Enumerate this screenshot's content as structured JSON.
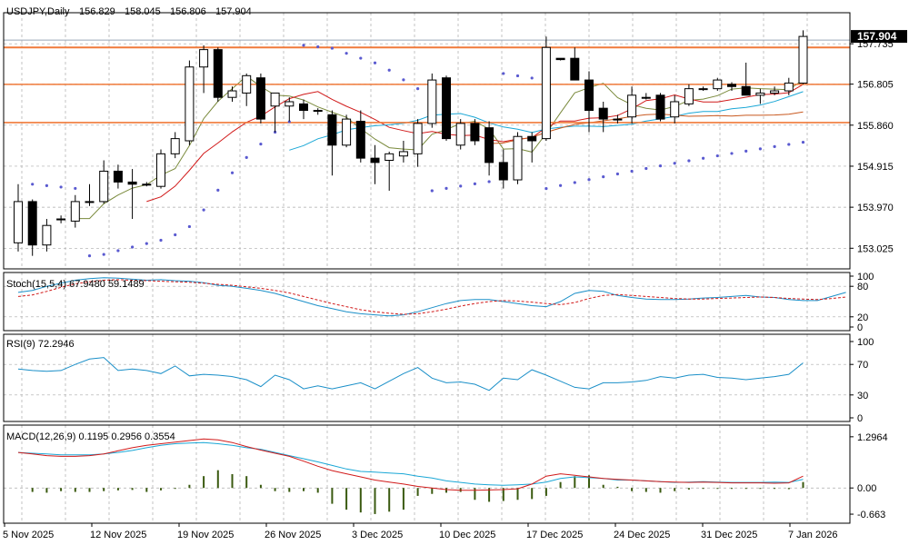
{
  "chart_data": {
    "type": "candlestick",
    "title": "USDJPY,Daily",
    "ohlc_header": [
      "156.829",
      "158.045",
      "156.806",
      "157.904"
    ],
    "current_price_label": "157.904",
    "price_axis": {
      "range": [
        152.55,
        158.45
      ],
      "ticks": [
        "157.735",
        "156.805",
        "155.860",
        "154.915",
        "153.970",
        "153.025"
      ]
    },
    "date_labels": [
      "5 Nov 2025",
      "12 Nov 2025",
      "19 Nov 2025",
      "26 Nov 2025",
      "3 Dec 2025",
      "10 Dec 2025",
      "17 Dec 2025",
      "24 Dec 2025",
      "31 Dec 2025",
      "7 Jan 2026"
    ],
    "horizontal_levels": [
      157.65,
      156.8,
      155.92
    ],
    "candles": [
      {
        "o": 153.15,
        "h": 154.5,
        "l": 152.95,
        "c": 154.1
      },
      {
        "o": 154.1,
        "h": 154.15,
        "l": 152.85,
        "c": 153.1
      },
      {
        "o": 153.1,
        "h": 153.7,
        "l": 152.95,
        "c": 153.55
      },
      {
        "o": 153.7,
        "h": 153.78,
        "l": 153.6,
        "c": 153.7
      },
      {
        "o": 153.65,
        "h": 154.25,
        "l": 153.5,
        "c": 154.1
      },
      {
        "o": 154.1,
        "h": 154.5,
        "l": 154.0,
        "c": 154.1
      },
      {
        "o": 154.1,
        "h": 155.05,
        "l": 154.05,
        "c": 154.8
      },
      {
        "o": 154.8,
        "h": 154.95,
        "l": 154.4,
        "c": 154.55
      },
      {
        "o": 154.55,
        "h": 154.85,
        "l": 153.7,
        "c": 154.5
      },
      {
        "o": 154.5,
        "h": 154.55,
        "l": 154.45,
        "c": 154.5
      },
      {
        "o": 154.45,
        "h": 155.3,
        "l": 154.4,
        "c": 155.2
      },
      {
        "o": 155.2,
        "h": 155.7,
        "l": 155.1,
        "c": 155.55
      },
      {
        "o": 155.5,
        "h": 157.35,
        "l": 155.4,
        "c": 157.2
      },
      {
        "o": 157.2,
        "h": 157.7,
        "l": 156.6,
        "c": 157.6
      },
      {
        "o": 157.6,
        "h": 157.65,
        "l": 156.4,
        "c": 156.5
      },
      {
        "o": 156.5,
        "h": 156.75,
        "l": 156.4,
        "c": 156.65
      },
      {
        "o": 156.6,
        "h": 157.05,
        "l": 156.3,
        "c": 157.0
      },
      {
        "o": 156.95,
        "h": 157.05,
        "l": 155.9,
        "c": 156.0
      },
      {
        "o": 156.3,
        "h": 156.6,
        "l": 155.7,
        "c": 156.6
      },
      {
        "o": 156.3,
        "h": 156.5,
        "l": 155.95,
        "c": 156.4
      },
      {
        "o": 156.35,
        "h": 156.45,
        "l": 156.0,
        "c": 156.2
      },
      {
        "o": 156.2,
        "h": 156.25,
        "l": 156.1,
        "c": 156.2
      },
      {
        "o": 156.1,
        "h": 156.2,
        "l": 154.7,
        "c": 155.4
      },
      {
        "o": 155.4,
        "h": 156.1,
        "l": 155.35,
        "c": 156.0
      },
      {
        "o": 155.95,
        "h": 156.2,
        "l": 155.0,
        "c": 155.1
      },
      {
        "o": 155.1,
        "h": 155.4,
        "l": 154.5,
        "c": 155.0
      },
      {
        "o": 155.05,
        "h": 155.25,
        "l": 154.35,
        "c": 155.2
      },
      {
        "o": 155.15,
        "h": 155.5,
        "l": 155.0,
        "c": 155.25
      },
      {
        "o": 155.2,
        "h": 156.0,
        "l": 154.9,
        "c": 155.9
      },
      {
        "o": 155.9,
        "h": 157.05,
        "l": 155.8,
        "c": 156.9
      },
      {
        "o": 156.95,
        "h": 157.0,
        "l": 155.5,
        "c": 155.55
      },
      {
        "o": 155.4,
        "h": 156.0,
        "l": 155.3,
        "c": 155.9
      },
      {
        "o": 155.9,
        "h": 156.0,
        "l": 155.4,
        "c": 155.5
      },
      {
        "o": 155.8,
        "h": 155.95,
        "l": 154.7,
        "c": 155.0
      },
      {
        "o": 155.0,
        "h": 155.3,
        "l": 154.4,
        "c": 154.6
      },
      {
        "o": 154.6,
        "h": 155.7,
        "l": 154.5,
        "c": 155.6
      },
      {
        "o": 155.6,
        "h": 155.7,
        "l": 155.0,
        "c": 155.5
      },
      {
        "o": 155.55,
        "h": 157.9,
        "l": 155.5,
        "c": 157.65
      },
      {
        "o": 157.4,
        "h": 157.4,
        "l": 157.35,
        "c": 157.37
      },
      {
        "o": 157.4,
        "h": 157.65,
        "l": 156.9,
        "c": 156.9
      },
      {
        "o": 156.9,
        "h": 157.1,
        "l": 155.7,
        "c": 156.2
      },
      {
        "o": 156.25,
        "h": 156.4,
        "l": 155.7,
        "c": 156.0
      },
      {
        "o": 156.0,
        "h": 156.1,
        "l": 155.9,
        "c": 156.0
      },
      {
        "o": 156.05,
        "h": 156.75,
        "l": 155.9,
        "c": 156.55
      },
      {
        "o": 156.5,
        "h": 156.6,
        "l": 156.45,
        "c": 156.5
      },
      {
        "o": 156.55,
        "h": 156.6,
        "l": 155.95,
        "c": 156.0
      },
      {
        "o": 156.05,
        "h": 156.55,
        "l": 155.9,
        "c": 156.4
      },
      {
        "o": 156.35,
        "h": 156.8,
        "l": 156.3,
        "c": 156.7
      },
      {
        "o": 156.7,
        "h": 156.75,
        "l": 156.65,
        "c": 156.7
      },
      {
        "o": 156.7,
        "h": 156.95,
        "l": 156.65,
        "c": 156.9
      },
      {
        "o": 156.8,
        "h": 156.85,
        "l": 156.65,
        "c": 156.75
      },
      {
        "o": 156.75,
        "h": 157.3,
        "l": 156.55,
        "c": 156.55
      },
      {
        "o": 156.55,
        "h": 156.7,
        "l": 156.35,
        "c": 156.6
      },
      {
        "o": 156.6,
        "h": 156.75,
        "l": 156.55,
        "c": 156.65
      },
      {
        "o": 156.65,
        "h": 156.95,
        "l": 156.55,
        "c": 156.83
      },
      {
        "o": 156.829,
        "h": 158.045,
        "l": 156.806,
        "c": 157.904
      }
    ],
    "indicators": {
      "stoch": {
        "label": "Stoch(15,5,4) 67.9480 59.1489",
        "range": [
          0,
          100
        ],
        "ticks": [
          {
            "value": 100,
            "label": "100"
          },
          {
            "value": 80,
            "label": "80"
          },
          {
            "value": 20,
            "label": "20"
          },
          {
            "value": 0,
            "label": "0"
          }
        ],
        "k_start": 8,
        "k": [
          68,
          72,
          80,
          86,
          92,
          95,
          97,
          96,
          94,
          92,
          93,
          91,
          90,
          87,
          82,
          80,
          76,
          72,
          66,
          58,
          50,
          42,
          36,
          30,
          26,
          24,
          22,
          24,
          30,
          38,
          46,
          52,
          54,
          54,
          50,
          46,
          42,
          40,
          50,
          66,
          72,
          70,
          62,
          58,
          55,
          54,
          54,
          55,
          57,
          58,
          60,
          62,
          59,
          58,
          54,
          52,
          52,
          60,
          68
        ],
        "d": [
          60,
          63,
          70,
          78,
          85,
          89,
          92,
          93,
          92,
          91,
          90,
          89,
          88,
          86,
          84,
          82,
          79,
          76,
          72,
          67,
          60,
          53,
          46,
          40,
          34,
          30,
          27,
          25,
          26,
          30,
          35,
          41,
          46,
          50,
          52,
          51,
          49,
          46,
          44,
          48,
          56,
          62,
          64,
          62,
          60,
          58,
          56,
          55,
          55,
          56,
          57,
          58,
          59,
          58,
          56,
          55,
          54,
          56,
          59
        ]
      },
      "rsi": {
        "label": "RSI(9) 72.2946",
        "range": [
          0,
          100
        ],
        "ticks": [
          {
            "value": 100,
            "label": "100"
          },
          {
            "value": 70,
            "label": "70"
          },
          {
            "value": 30,
            "label": "30"
          },
          {
            "value": 0,
            "label": "0"
          }
        ],
        "values": [
          60,
          44,
          52,
          56,
          55,
          60,
          60,
          64,
          62,
          61,
          62,
          70,
          77,
          79,
          62,
          64,
          62,
          58,
          68,
          55,
          57,
          56,
          54,
          50,
          41,
          56,
          50,
          38,
          42,
          38,
          42,
          46,
          38,
          48,
          58,
          66,
          52,
          46,
          47,
          44,
          36,
          52,
          50,
          63,
          56,
          48,
          40,
          38,
          46,
          46,
          47,
          49,
          54,
          52,
          56,
          57,
          53,
          52,
          50,
          52,
          54,
          57,
          72
        ],
        "level": 55
      },
      "macd": {
        "label": "MACD(12,26,9) 0.1195 0.2956 0.3554",
        "range": [
          -0.8,
          1.5
        ],
        "ticks": [
          {
            "value": 1.2964,
            "label": "1.2964"
          },
          {
            "value": 0.0,
            "label": "0.00"
          },
          {
            "value": -0.663,
            "label": "-0.663"
          }
        ],
        "histogram": [
          -0.1,
          -0.12,
          -0.08,
          -0.1,
          -0.1,
          -0.08,
          -0.06,
          -0.05,
          -0.1,
          -0.06,
          0.0,
          0.08,
          0.3,
          0.45,
          0.35,
          0.3,
          0.08,
          -0.08,
          -0.1,
          -0.08,
          -0.12,
          -0.4,
          -0.55,
          -0.62,
          -0.66,
          -0.6,
          -0.55,
          -0.2,
          -0.15,
          -0.12,
          -0.1,
          -0.3,
          -0.35,
          -0.33,
          -0.3,
          -0.28,
          -0.2,
          0.15,
          0.3,
          0.32,
          0.08,
          0.03,
          -0.08,
          -0.1,
          -0.12,
          -0.08,
          -0.04,
          -0.02,
          -0.01,
          -0.01,
          -0.01,
          -0.02,
          -0.01,
          -0.03,
          0.15
        ],
        "signal": [
          0.9,
          0.88,
          0.86,
          0.84,
          0.84,
          0.84,
          0.86,
          0.9,
          0.95,
          1.02,
          1.08,
          1.12,
          1.14,
          1.15,
          1.12,
          1.08,
          1.02,
          0.98,
          0.9,
          0.82,
          0.74,
          0.66,
          0.57,
          0.48,
          0.42,
          0.4,
          0.38,
          0.36,
          0.3,
          0.25,
          0.18,
          0.14,
          0.1,
          0.08,
          0.07,
          0.08,
          0.1,
          0.15,
          0.24,
          0.28,
          0.26,
          0.24,
          0.2,
          0.2,
          0.18,
          0.16,
          0.14,
          0.15,
          0.16,
          0.15,
          0.14,
          0.14,
          0.14,
          0.15,
          0.14,
          0.22
        ],
        "line": [
          0.9,
          0.86,
          0.82,
          0.8,
          0.8,
          0.82,
          0.86,
          0.94,
          1.02,
          1.08,
          1.12,
          1.16,
          1.2,
          1.24,
          1.22,
          1.15,
          1.05,
          0.96,
          0.88,
          0.8,
          0.68,
          0.55,
          0.44,
          0.36,
          0.28,
          0.2,
          0.15,
          0.1,
          0.04,
          0.0,
          -0.04,
          -0.06,
          -0.06,
          -0.05,
          -0.04,
          -0.02,
          0.1,
          0.3,
          0.36,
          0.32,
          0.28,
          0.24,
          0.22,
          0.2,
          0.18,
          0.16,
          0.15,
          0.14,
          0.15,
          0.14,
          0.13,
          0.13,
          0.13,
          0.12,
          0.13,
          0.3
        ]
      }
    }
  }
}
